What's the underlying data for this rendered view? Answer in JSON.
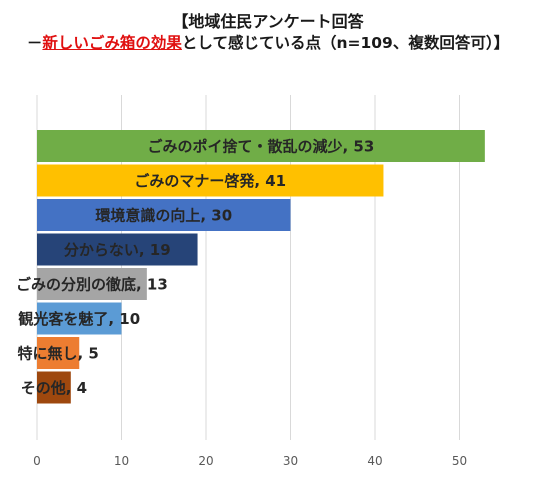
{
  "title_line1": "【地域住民アンケート回答",
  "title_line2_prefix": "－",
  "title_line2_highlight": "新しいごみ箱の効果",
  "title_line2_suffix": "として感じている点（n=109、複数回答可）】",
  "chart_data": {
    "type": "bar",
    "orientation": "horizontal",
    "categories": [
      "ごみのポイ捨て・散乱の減少",
      "ごみのマナー啓発",
      "環境意識の向上",
      "分からない",
      "ごみの分別の徹底",
      "観光客を魅了",
      "特に無し",
      "その他"
    ],
    "values": [
      53,
      41,
      30,
      19,
      13,
      10,
      5,
      4
    ],
    "data_labels": [
      "ごみのポイ捨て・散乱の減少, 53",
      "ごみのマナー啓発, 41",
      "環境意識の向上, 30",
      "分からない, 19",
      "ごみの分別の徹底, 13",
      "観光客を魅了, 10",
      "特に無し, 5",
      "その他, 4"
    ],
    "colors": [
      "#70ad47",
      "#ffc000",
      "#4472c4",
      "#264478",
      "#a5a5a5",
      "#5b9bd5",
      "#ed7d31",
      "#9e480e"
    ],
    "xlim": [
      0,
      55
    ],
    "xticks": [
      "0",
      "10",
      "20",
      "30",
      "40",
      "50"
    ],
    "grid": true,
    "legend": "none"
  }
}
